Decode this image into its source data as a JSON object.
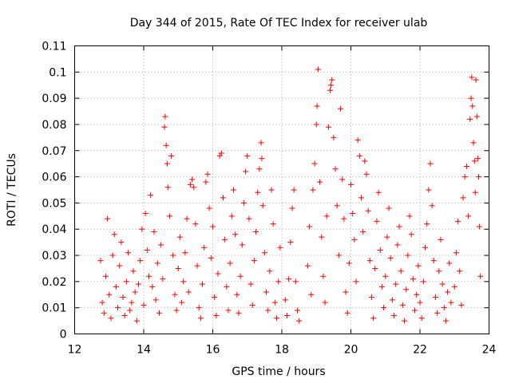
{
  "chart_data": {
    "type": "scatter",
    "title": "Day 344 of 2015, Rate Of TEC Index for receiver ulab",
    "xlabel": "GPS time / hours",
    "ylabel": "ROTI / TECUs",
    "xlim": [
      12,
      24
    ],
    "ylim": [
      0,
      0.11
    ],
    "xticks": [
      "12",
      "14",
      "16",
      "18",
      "20",
      "22",
      "24"
    ],
    "yticks": [
      "0",
      "0.01",
      "0.02",
      "0.03",
      "0.04",
      "0.05",
      "0.06",
      "0.07",
      "0.08",
      "0.09",
      "0.1",
      "0.11"
    ],
    "grid": true,
    "marker": "+",
    "color": "#ff0000",
    "series": [
      {
        "points": [
          [
            12.75,
            0.028
          ],
          [
            12.8,
            0.012
          ],
          [
            12.85,
            0.008
          ],
          [
            12.9,
            0.022
          ],
          [
            12.95,
            0.044
          ],
          [
            13.0,
            0.015
          ],
          [
            13.05,
            0.006
          ],
          [
            13.1,
            0.03
          ],
          [
            13.15,
            0.038
          ],
          [
            13.2,
            0.018
          ],
          [
            13.25,
            0.01
          ],
          [
            13.3,
            0.026
          ],
          [
            13.35,
            0.035
          ],
          [
            13.4,
            0.014
          ],
          [
            13.45,
            0.007
          ],
          [
            13.5,
            0.02
          ],
          [
            13.55,
            0.031
          ],
          [
            13.6,
            0.009
          ],
          [
            13.65,
            0.012
          ],
          [
            13.7,
            0.024
          ],
          [
            13.75,
            0.016
          ],
          [
            13.8,
            0.005
          ],
          [
            13.85,
            0.019
          ],
          [
            13.9,
            0.028
          ],
          [
            13.95,
            0.04
          ],
          [
            14.0,
            0.011
          ],
          [
            14.05,
            0.046
          ],
          [
            14.1,
            0.032
          ],
          [
            14.15,
            0.022
          ],
          [
            14.2,
            0.053
          ],
          [
            14.25,
            0.018
          ],
          [
            14.3,
            0.039
          ],
          [
            14.35,
            0.013
          ],
          [
            14.4,
            0.027
          ],
          [
            14.45,
            0.008
          ],
          [
            14.5,
            0.034
          ],
          [
            14.55,
            0.021
          ],
          [
            14.6,
            0.079
          ],
          [
            14.62,
            0.083
          ],
          [
            14.65,
            0.072
          ],
          [
            14.68,
            0.065
          ],
          [
            14.7,
            0.056
          ],
          [
            14.75,
            0.045
          ],
          [
            14.8,
            0.068
          ],
          [
            14.85,
            0.03
          ],
          [
            14.9,
            0.015
          ],
          [
            14.95,
            0.009
          ],
          [
            15.0,
            0.025
          ],
          [
            15.05,
            0.037
          ],
          [
            15.1,
            0.012
          ],
          [
            15.15,
            0.02
          ],
          [
            15.2,
            0.031
          ],
          [
            15.25,
            0.044
          ],
          [
            15.3,
            0.016
          ],
          [
            15.35,
            0.057
          ],
          [
            15.4,
            0.059
          ],
          [
            15.45,
            0.056
          ],
          [
            15.5,
            0.042
          ],
          [
            15.55,
            0.026
          ],
          [
            15.6,
            0.01
          ],
          [
            15.65,
            0.006
          ],
          [
            15.7,
            0.019
          ],
          [
            15.75,
            0.033
          ],
          [
            15.8,
            0.058
          ],
          [
            15.85,
            0.061
          ],
          [
            15.9,
            0.048
          ],
          [
            15.95,
            0.029
          ],
          [
            16.0,
            0.041
          ],
          [
            16.05,
            0.014
          ],
          [
            16.1,
            0.007
          ],
          [
            16.15,
            0.023
          ],
          [
            16.2,
            0.068
          ],
          [
            16.25,
            0.069
          ],
          [
            16.3,
            0.052
          ],
          [
            16.35,
            0.036
          ],
          [
            16.4,
            0.018
          ],
          [
            16.45,
            0.009
          ],
          [
            16.5,
            0.027
          ],
          [
            16.55,
            0.045
          ],
          [
            16.6,
            0.055
          ],
          [
            16.65,
            0.038
          ],
          [
            16.7,
            0.015
          ],
          [
            16.75,
            0.008
          ],
          [
            16.8,
            0.022
          ],
          [
            16.85,
            0.034
          ],
          [
            16.9,
            0.05
          ],
          [
            16.95,
            0.062
          ],
          [
            17.0,
            0.068
          ],
          [
            17.05,
            0.044
          ],
          [
            17.1,
            0.019
          ],
          [
            17.15,
            0.011
          ],
          [
            17.2,
            0.028
          ],
          [
            17.25,
            0.039
          ],
          [
            17.3,
            0.054
          ],
          [
            17.35,
            0.063
          ],
          [
            17.4,
            0.073
          ],
          [
            17.42,
            0.067
          ],
          [
            17.45,
            0.049
          ],
          [
            17.5,
            0.031
          ],
          [
            17.55,
            0.016
          ],
          [
            17.6,
            0.009
          ],
          [
            17.65,
            0.024
          ],
          [
            17.7,
            0.055
          ],
          [
            17.75,
            0.042
          ],
          [
            17.8,
            0.012
          ],
          [
            17.85,
            0.006
          ],
          [
            17.9,
            0.02
          ],
          [
            17.95,
            0.033
          ],
          [
            18.1,
            0.013
          ],
          [
            18.15,
            0.007
          ],
          [
            18.2,
            0.021
          ],
          [
            18.25,
            0.035
          ],
          [
            18.3,
            0.048
          ],
          [
            18.35,
            0.055
          ],
          [
            18.4,
            0.02
          ],
          [
            18.45,
            0.009
          ],
          [
            18.5,
            0.005
          ],
          [
            18.75,
            0.026
          ],
          [
            18.8,
            0.041
          ],
          [
            18.85,
            0.015
          ],
          [
            18.9,
            0.055
          ],
          [
            18.95,
            0.065
          ],
          [
            19.0,
            0.08
          ],
          [
            19.02,
            0.087
          ],
          [
            19.05,
            0.101
          ],
          [
            19.1,
            0.058
          ],
          [
            19.15,
            0.037
          ],
          [
            19.2,
            0.022
          ],
          [
            19.25,
            0.012
          ],
          [
            19.3,
            0.045
          ],
          [
            19.35,
            0.079
          ],
          [
            19.4,
            0.093
          ],
          [
            19.42,
            0.095
          ],
          [
            19.45,
            0.097
          ],
          [
            19.5,
            0.075
          ],
          [
            19.55,
            0.063
          ],
          [
            19.6,
            0.049
          ],
          [
            19.65,
            0.03
          ],
          [
            19.7,
            0.086
          ],
          [
            19.75,
            0.059
          ],
          [
            19.8,
            0.044
          ],
          [
            19.85,
            0.016
          ],
          [
            19.9,
            0.008
          ],
          [
            19.95,
            0.027
          ],
          [
            20.0,
            0.057
          ],
          [
            20.05,
            0.046
          ],
          [
            20.1,
            0.036
          ],
          [
            20.15,
            0.02
          ],
          [
            20.2,
            0.074
          ],
          [
            20.25,
            0.068
          ],
          [
            20.3,
            0.052
          ],
          [
            20.35,
            0.039
          ],
          [
            20.4,
            0.066
          ],
          [
            20.45,
            0.061
          ],
          [
            20.5,
            0.047
          ],
          [
            20.55,
            0.028
          ],
          [
            20.6,
            0.014
          ],
          [
            20.65,
            0.006
          ],
          [
            20.7,
            0.025
          ],
          [
            20.75,
            0.043
          ],
          [
            20.8,
            0.054
          ],
          [
            20.85,
            0.032
          ],
          [
            20.9,
            0.018
          ],
          [
            20.95,
            0.01
          ],
          [
            21.0,
            0.022
          ],
          [
            21.05,
            0.037
          ],
          [
            21.1,
            0.048
          ],
          [
            21.15,
            0.029
          ],
          [
            21.2,
            0.013
          ],
          [
            21.25,
            0.007
          ],
          [
            21.3,
            0.019
          ],
          [
            21.35,
            0.034
          ],
          [
            21.4,
            0.041
          ],
          [
            21.45,
            0.024
          ],
          [
            21.5,
            0.011
          ],
          [
            21.55,
            0.005
          ],
          [
            21.6,
            0.017
          ],
          [
            21.65,
            0.03
          ],
          [
            21.7,
            0.045
          ],
          [
            21.75,
            0.038
          ],
          [
            21.8,
            0.021
          ],
          [
            21.85,
            0.009
          ],
          [
            21.9,
            0.015
          ],
          [
            21.95,
            0.026
          ],
          [
            22.0,
            0.012
          ],
          [
            22.05,
            0.006
          ],
          [
            22.1,
            0.02
          ],
          [
            22.15,
            0.033
          ],
          [
            22.2,
            0.042
          ],
          [
            22.25,
            0.055
          ],
          [
            22.3,
            0.065
          ],
          [
            22.35,
            0.049
          ],
          [
            22.4,
            0.028
          ],
          [
            22.45,
            0.014
          ],
          [
            22.5,
            0.008
          ],
          [
            22.55,
            0.024
          ],
          [
            22.6,
            0.036
          ],
          [
            22.65,
            0.019
          ],
          [
            22.7,
            0.01
          ],
          [
            22.75,
            0.005
          ],
          [
            22.8,
            0.016
          ],
          [
            22.85,
            0.027
          ],
          [
            22.9,
            0.012
          ],
          [
            23.0,
            0.018
          ],
          [
            23.05,
            0.031
          ],
          [
            23.1,
            0.043
          ],
          [
            23.15,
            0.024
          ],
          [
            23.2,
            0.011
          ],
          [
            23.25,
            0.052
          ],
          [
            23.3,
            0.06
          ],
          [
            23.35,
            0.064
          ],
          [
            23.4,
            0.045
          ],
          [
            23.45,
            0.082
          ],
          [
            23.48,
            0.09
          ],
          [
            23.5,
            0.098
          ],
          [
            23.52,
            0.087
          ],
          [
            23.55,
            0.073
          ],
          [
            23.58,
            0.066
          ],
          [
            23.6,
            0.054
          ],
          [
            23.62,
            0.097
          ],
          [
            23.65,
            0.083
          ],
          [
            23.68,
            0.067
          ],
          [
            23.7,
            0.06
          ],
          [
            23.72,
            0.041
          ],
          [
            23.75,
            0.022
          ]
        ]
      }
    ]
  }
}
